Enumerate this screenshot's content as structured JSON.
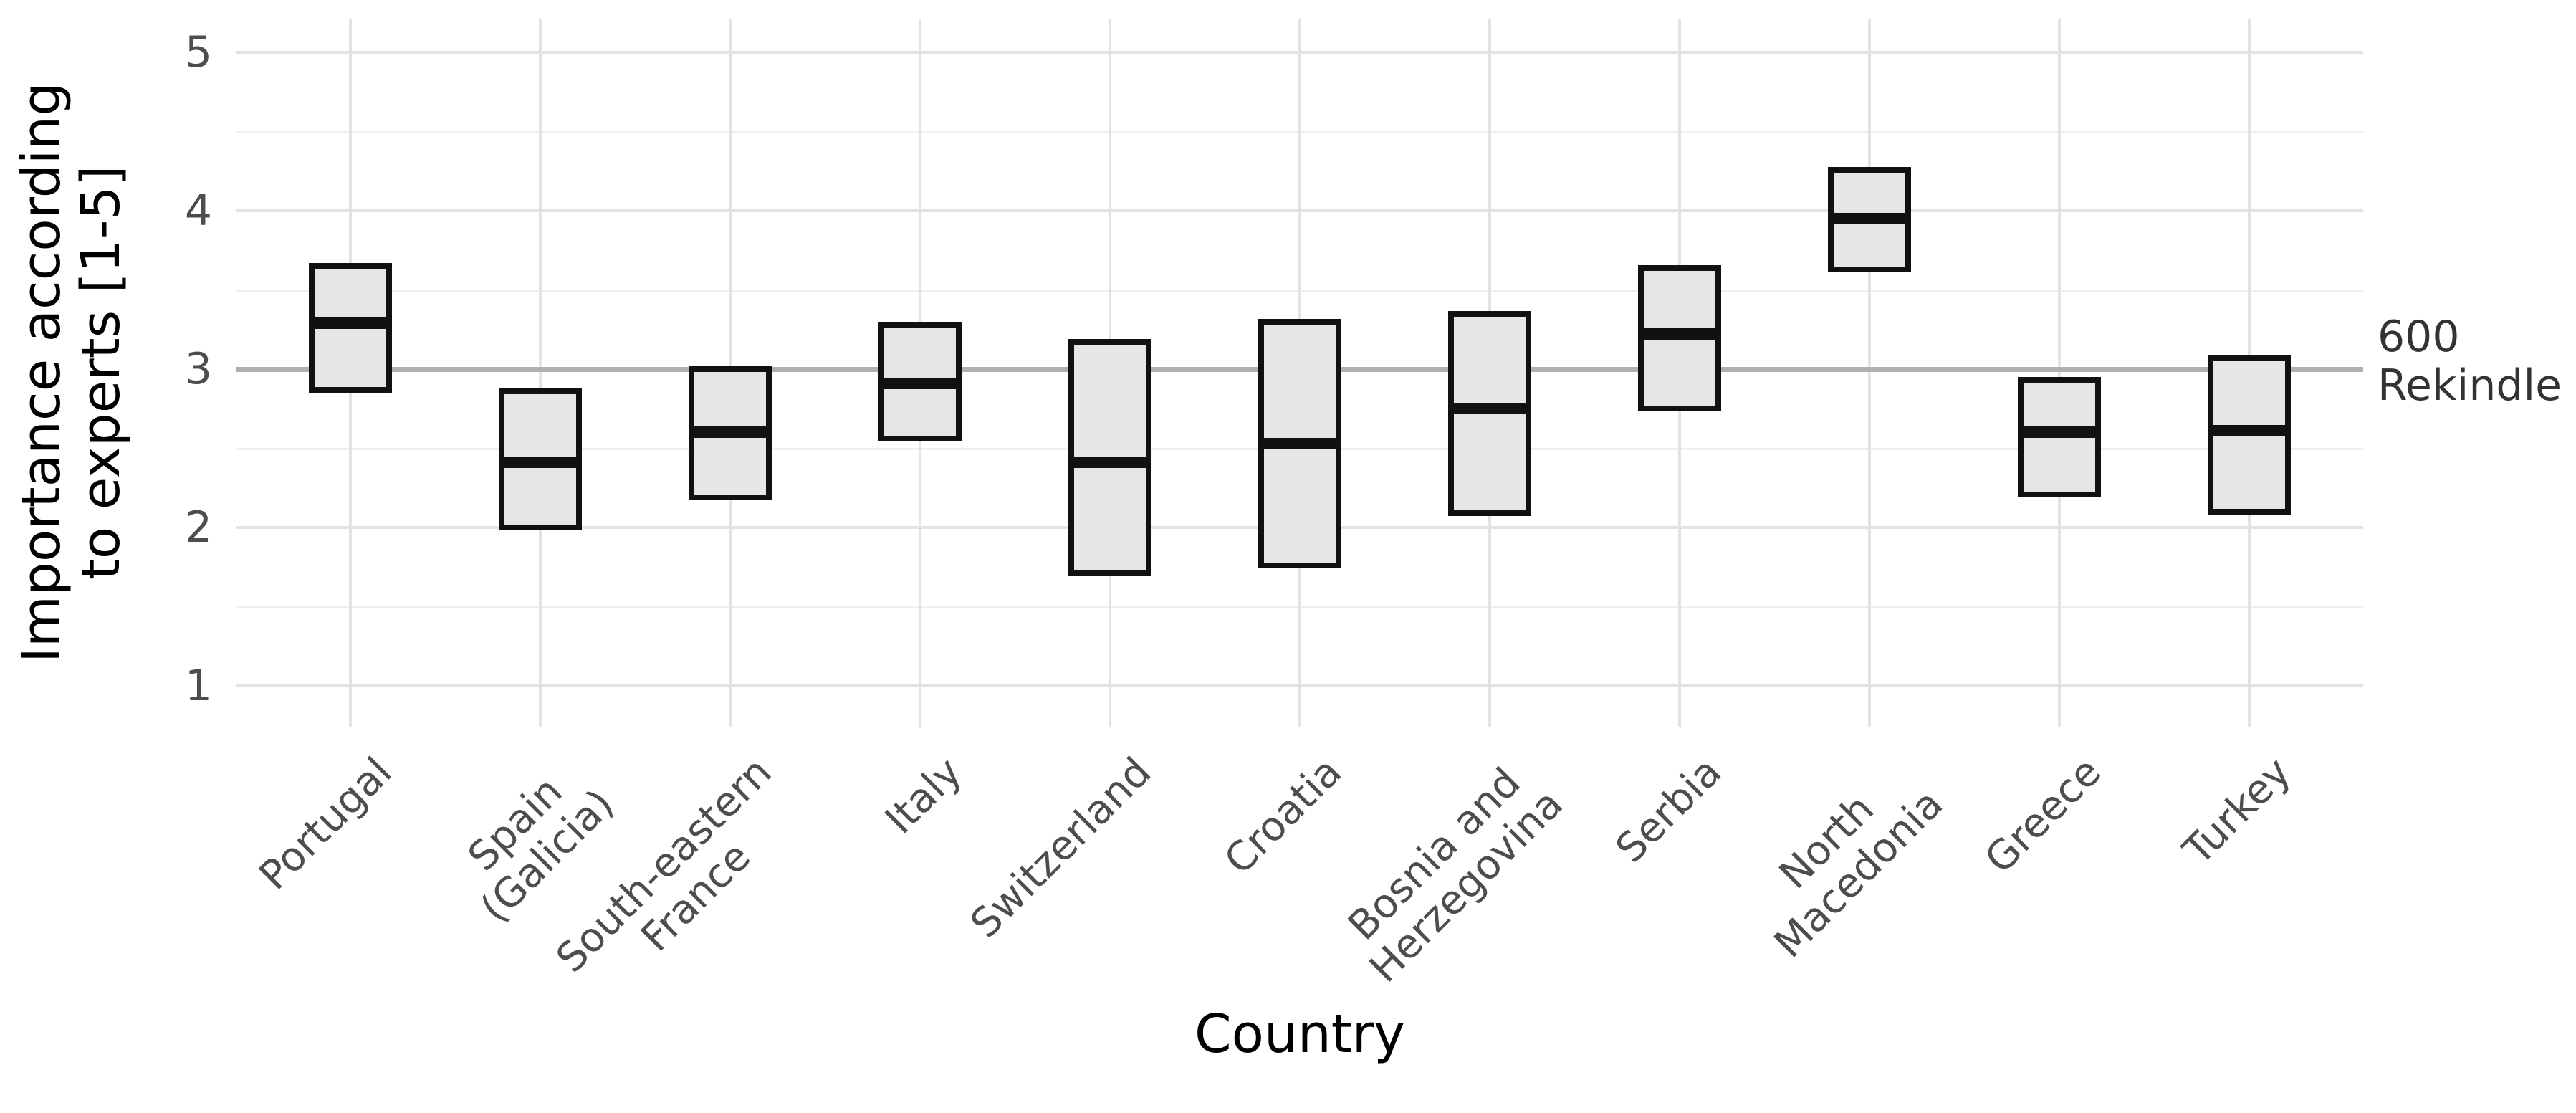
{
  "chart_data": {
    "type": "bar",
    "subtype": "crossbar-range-plot",
    "title": "",
    "xlabel": "Country",
    "ylabel": "Importance according to experts [1-5]",
    "ylabel_lines": [
      "Importance according",
      "to experts [1-5]"
    ],
    "ylim": [
      1,
      5
    ],
    "yticks": [
      1,
      2,
      3,
      4,
      5
    ],
    "yticks_minor": [
      1.5,
      2.5,
      3.5,
      4.5
    ],
    "reference_line_y": 3,
    "grid": "on",
    "legend": "none",
    "categories": [
      "Portugal",
      "Spain (Galicia)",
      "South-eastern France",
      "Italy",
      "Switzerland",
      "Croatia",
      "Bosnia and Herzegovina",
      "Serbia",
      "North Macedonia",
      "Greece",
      "Turkey"
    ],
    "category_label_lines": [
      [
        "Portugal"
      ],
      [
        "Spain",
        "(Galicia)"
      ],
      [
        "South-eastern",
        "France"
      ],
      [
        "Italy"
      ],
      [
        "Switzerland"
      ],
      [
        "Croatia"
      ],
      [
        "Bosnia and",
        "Herzegovina"
      ],
      [
        "Serbia"
      ],
      [
        "North",
        "Macedonia"
      ],
      [
        "Greece"
      ],
      [
        "Turkey"
      ]
    ],
    "series": [
      {
        "country": "Portugal",
        "lower": 2.87,
        "mid": 3.29,
        "upper": 3.65
      },
      {
        "country": "Spain (Galicia)",
        "lower": 2.0,
        "mid": 2.41,
        "upper": 2.86
      },
      {
        "country": "South-eastern France",
        "lower": 2.19,
        "mid": 2.6,
        "upper": 3.0
      },
      {
        "country": "Italy",
        "lower": 2.56,
        "mid": 2.91,
        "upper": 3.28
      },
      {
        "country": "Switzerland",
        "lower": 1.71,
        "mid": 2.41,
        "upper": 3.17
      },
      {
        "country": "Croatia",
        "lower": 1.76,
        "mid": 2.53,
        "upper": 3.3
      },
      {
        "country": "Bosnia and Herzegovina",
        "lower": 2.09,
        "mid": 2.75,
        "upper": 3.35
      },
      {
        "country": "Serbia",
        "lower": 2.75,
        "mid": 3.22,
        "upper": 3.64
      },
      {
        "country": "North Macedonia",
        "lower": 3.63,
        "mid": 3.95,
        "upper": 4.26
      },
      {
        "country": "Greece",
        "lower": 2.21,
        "mid": 2.6,
        "upper": 2.93
      },
      {
        "country": "Turkey",
        "lower": 2.1,
        "mid": 2.61,
        "upper": 3.07
      }
    ]
  },
  "annotation": {
    "text": "600 Rekindle",
    "lines": [
      "600",
      "Rekindle"
    ]
  },
  "colors": {
    "background": "#ffffff",
    "box_fill": "#e6e6e6",
    "box_border": "#111111",
    "grid_major": "#e3e3e3",
    "grid_minor": "#efefef",
    "reference_line": "#b0b0b0",
    "axis_text": "#4d4d4d",
    "axis_title": "#000000",
    "annotation_text": "#333333"
  }
}
